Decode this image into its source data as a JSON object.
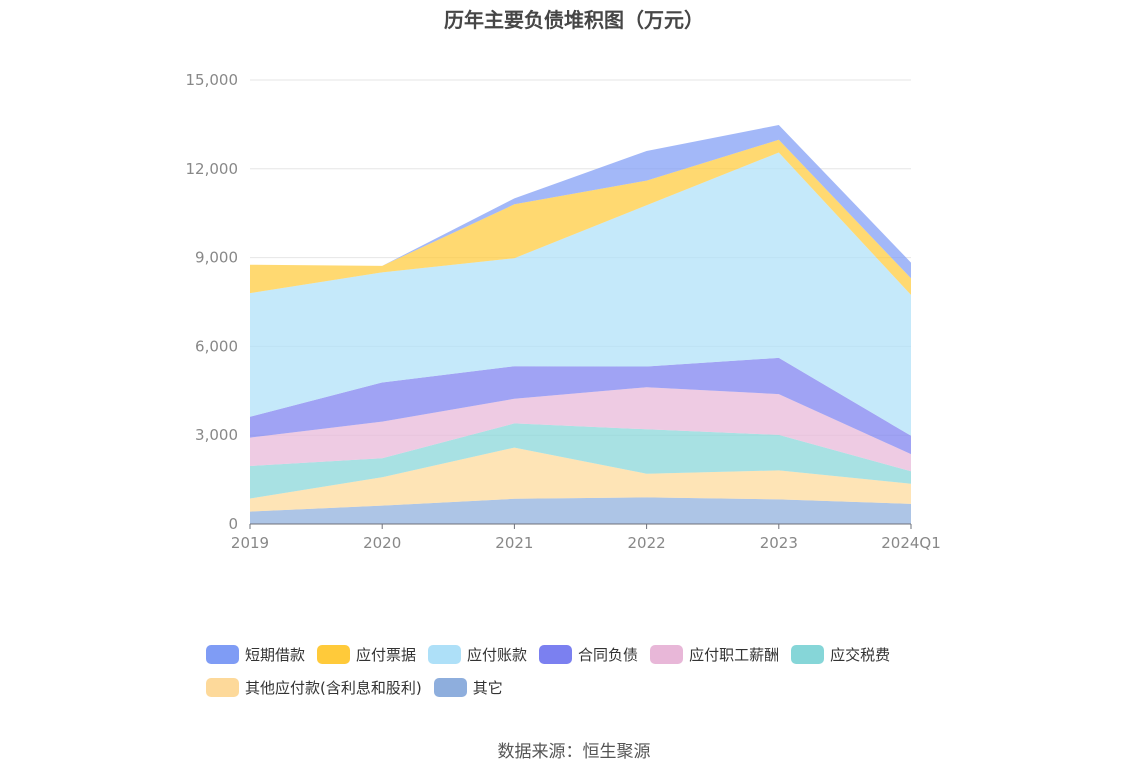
{
  "chart_data": {
    "type": "area",
    "stacked": true,
    "title": "历年主要负债堆积图（万元）",
    "x": [
      "2019",
      "2020",
      "2021",
      "2022",
      "2023",
      "2024Q1"
    ],
    "y_ticks": [
      "0",
      "3,000",
      "6,000",
      "9,000",
      "12,000",
      "15,000"
    ],
    "ylim": [
      0,
      15000
    ],
    "grid": true,
    "legend_position": "bottom",
    "series": [
      {
        "name": "其它",
        "color": "#8eaedd",
        "values": [
          420,
          620,
          850,
          900,
          830,
          680
        ]
      },
      {
        "name": "其他应付款(含利息和股利)",
        "color": "#fdd99a",
        "values": [
          440,
          960,
          1730,
          800,
          980,
          680
        ]
      },
      {
        "name": "应交税费",
        "color": "#86d6d8",
        "values": [
          1100,
          640,
          820,
          1500,
          1200,
          420
        ]
      },
      {
        "name": "应付职工薪酬",
        "color": "#e8b7d8",
        "values": [
          960,
          1240,
          830,
          1420,
          1380,
          580
        ]
      },
      {
        "name": "合同负债",
        "color": "#7b80f0",
        "values": [
          700,
          1320,
          1100,
          700,
          1220,
          620
        ]
      },
      {
        "name": "应付账款",
        "color": "#aee0f8",
        "values": [
          4180,
          3720,
          3650,
          5450,
          6940,
          4760
        ]
      },
      {
        "name": "应付票据",
        "color": "#ffca3a",
        "values": [
          960,
          220,
          1820,
          830,
          430,
          560
        ]
      },
      {
        "name": "短期借款",
        "color": "#7f9cf5",
        "values": [
          0,
          0,
          200,
          1000,
          500,
          530
        ]
      }
    ]
  },
  "legend": {
    "row1": [
      "短期借款",
      "应付票据",
      "应付账款",
      "合同负债",
      "应付职工薪酬",
      "应交税费"
    ],
    "row2": [
      "其他应付款(含利息和股利)",
      "其它"
    ],
    "colors": {
      "短期借款": "#7f9cf5",
      "应付票据": "#ffca3a",
      "应付账款": "#aee0f8",
      "合同负债": "#7b80f0",
      "应付职工薪酬": "#e8b7d8",
      "应交税费": "#86d6d8",
      "其他应付款(含利息和股利)": "#fdd99a",
      "其它": "#8eaedd"
    }
  },
  "source": "数据来源：恒生聚源"
}
